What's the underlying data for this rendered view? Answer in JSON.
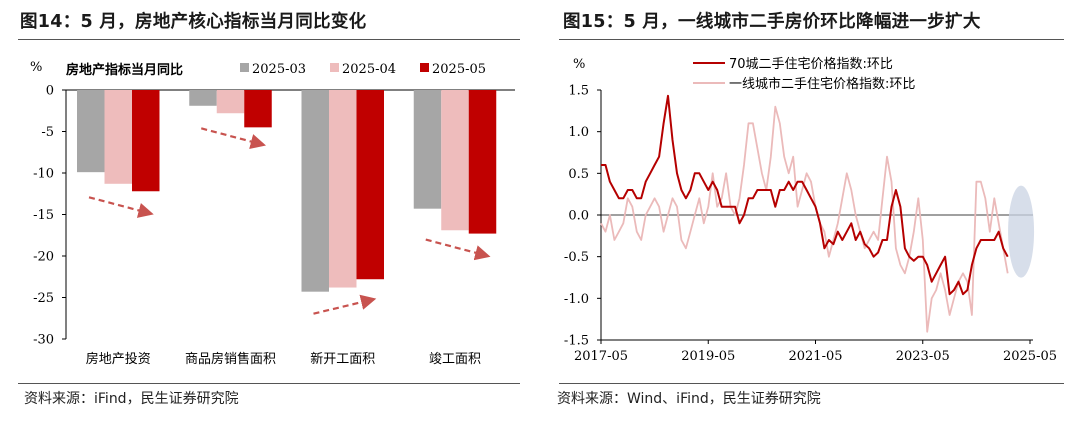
{
  "left": {
    "title": "图14：5 月，房地产核心指标当月同比变化",
    "source": "资料来源：iFind，民生证券研究院"
  },
  "right": {
    "title": "图15：5 月，一线城市二手房价环比降幅进一步扩大",
    "source": "资料来源：Wind、iFind，民生证券研究院"
  },
  "chart_data": [
    {
      "type": "bar",
      "title": "房地产指标当月同比",
      "ylabel": "%",
      "ylim": [
        -30,
        0
      ],
      "yticks": [
        0,
        -5,
        -10,
        -15,
        -20,
        -25,
        -30
      ],
      "categories": [
        "房地产投资",
        "商品房销售面积",
        "新开工面积",
        "竣工面积"
      ],
      "series": [
        {
          "name": "2025-03",
          "color": "#a6a6a6",
          "values": [
            -9.9,
            -1.9,
            -24.3,
            -14.3
          ]
        },
        {
          "name": "2025-04",
          "color": "#eebcbc",
          "values": [
            -11.3,
            -2.8,
            -23.8,
            -16.9
          ]
        },
        {
          "name": "2025-05",
          "color": "#c00000",
          "values": [
            -12.2,
            -4.5,
            -22.8,
            -17.3
          ]
        }
      ],
      "arrows": "dashed trend arrows under each category group",
      "grid": false
    },
    {
      "type": "line",
      "ylabel": "%",
      "ylim": [
        -1.5,
        1.5
      ],
      "yticks": [
        1.5,
        1.0,
        0.5,
        0.0,
        -0.5,
        -1.0,
        -1.5
      ],
      "xticks": [
        "2017-05",
        "2019-05",
        "2021-05",
        "2023-05",
        "2025-05"
      ],
      "x_start": "2017-05",
      "x_end": "2025-05",
      "frequency": "monthly",
      "legend_position": "top-center",
      "series": [
        {
          "name": "70城二手住宅价格指数:环比",
          "color": "#b50000",
          "values": [
            0.6,
            0.6,
            0.4,
            0.3,
            0.2,
            0.2,
            0.3,
            0.3,
            0.2,
            0.2,
            0.4,
            0.5,
            0.6,
            0.7,
            1.1,
            1.43,
            0.9,
            0.5,
            0.3,
            0.2,
            0.3,
            0.5,
            0.5,
            0.4,
            0.3,
            0.4,
            0.3,
            0.1,
            0.1,
            0.1,
            0.1,
            -0.1,
            0.0,
            0.2,
            0.2,
            0.3,
            0.3,
            0.3,
            0.3,
            0.1,
            0.3,
            0.3,
            0.4,
            0.3,
            0.4,
            0.4,
            0.3,
            0.2,
            0.1,
            -0.1,
            -0.4,
            -0.3,
            -0.35,
            -0.2,
            -0.3,
            -0.2,
            -0.1,
            -0.3,
            -0.2,
            -0.35,
            -0.4,
            -0.5,
            -0.45,
            -0.3,
            -0.3,
            0.1,
            0.3,
            0.1,
            -0.4,
            -0.5,
            -0.55,
            -0.5,
            -0.5,
            -0.6,
            -0.8,
            -0.7,
            -0.6,
            -0.5,
            -0.95,
            -0.9,
            -0.8,
            -0.95,
            -0.9,
            -0.6,
            -0.4,
            -0.3,
            -0.3,
            -0.3,
            -0.3,
            -0.2,
            -0.4,
            -0.5
          ]
        },
        {
          "name": "一线城市二手住宅价格指数:环比",
          "color": "#ebbaba",
          "values": [
            -0.1,
            -0.2,
            0.0,
            -0.3,
            -0.2,
            -0.1,
            0.2,
            0.1,
            -0.2,
            -0.3,
            0.0,
            0.1,
            0.2,
            0.1,
            -0.2,
            0.0,
            0.2,
            0.1,
            -0.3,
            -0.4,
            -0.2,
            0.0,
            0.2,
            -0.1,
            0.1,
            0.5,
            0.1,
            0.2,
            0.5,
            0.1,
            0.0,
            0.2,
            0.6,
            1.1,
            1.1,
            0.8,
            0.5,
            0.3,
            0.7,
            1.3,
            1.1,
            0.7,
            0.5,
            0.7,
            0.1,
            0.3,
            0.5,
            0.4,
            0.1,
            -0.1,
            -0.2,
            -0.5,
            -0.3,
            -0.1,
            0.2,
            0.5,
            0.3,
            0.0,
            -0.2,
            -0.4,
            -0.3,
            -0.2,
            -0.3,
            0.2,
            0.7,
            0.4,
            -0.4,
            -0.6,
            -0.7,
            -0.5,
            -0.2,
            0.2,
            -0.3,
            -1.4,
            -1.0,
            -0.9,
            -0.7,
            -0.9,
            -1.2,
            -1.0,
            -0.8,
            -0.7,
            -0.8,
            -1.2,
            0.4,
            0.4,
            0.2,
            -0.2,
            0.2,
            -0.1,
            -0.4,
            -0.7
          ]
        }
      ]
    }
  ]
}
